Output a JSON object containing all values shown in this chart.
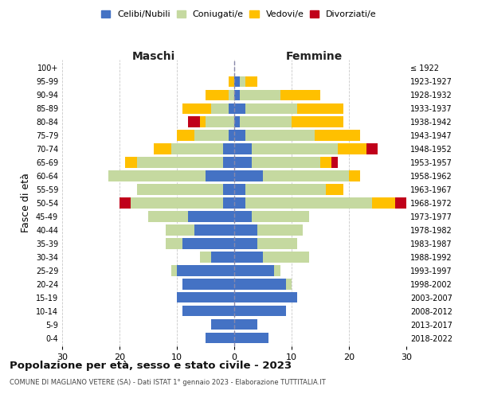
{
  "age_groups": [
    "0-4",
    "5-9",
    "10-14",
    "15-19",
    "20-24",
    "25-29",
    "30-34",
    "35-39",
    "40-44",
    "45-49",
    "50-54",
    "55-59",
    "60-64",
    "65-69",
    "70-74",
    "75-79",
    "80-84",
    "85-89",
    "90-94",
    "95-99",
    "100+"
  ],
  "birth_years": [
    "2018-2022",
    "2013-2017",
    "2008-2012",
    "2003-2007",
    "1998-2002",
    "1993-1997",
    "1988-1992",
    "1983-1987",
    "1978-1982",
    "1973-1977",
    "1968-1972",
    "1963-1967",
    "1958-1962",
    "1953-1957",
    "1948-1952",
    "1943-1947",
    "1938-1942",
    "1933-1937",
    "1928-1932",
    "1923-1927",
    "≤ 1922"
  ],
  "male_celibi": [
    5,
    4,
    9,
    10,
    9,
    10,
    4,
    9,
    7,
    8,
    2,
    2,
    5,
    2,
    2,
    1,
    0,
    1,
    0,
    0,
    0
  ],
  "male_coniugati": [
    0,
    0,
    0,
    0,
    0,
    1,
    2,
    3,
    5,
    7,
    16,
    15,
    17,
    15,
    9,
    6,
    5,
    3,
    1,
    0,
    0
  ],
  "male_vedovi": [
    0,
    0,
    0,
    0,
    0,
    0,
    0,
    0,
    0,
    0,
    0,
    0,
    0,
    2,
    3,
    3,
    1,
    5,
    4,
    1,
    0
  ],
  "male_divorziati": [
    0,
    0,
    0,
    0,
    0,
    0,
    0,
    0,
    0,
    0,
    2,
    0,
    0,
    0,
    0,
    0,
    2,
    0,
    0,
    0,
    0
  ],
  "female_celibi": [
    6,
    4,
    9,
    11,
    9,
    7,
    5,
    4,
    4,
    3,
    2,
    2,
    5,
    3,
    3,
    2,
    1,
    2,
    1,
    1,
    0
  ],
  "female_coniugati": [
    0,
    0,
    0,
    0,
    1,
    1,
    8,
    7,
    8,
    10,
    22,
    14,
    15,
    12,
    15,
    12,
    9,
    9,
    7,
    1,
    0
  ],
  "female_vedovi": [
    0,
    0,
    0,
    0,
    0,
    0,
    0,
    0,
    0,
    0,
    4,
    3,
    2,
    2,
    5,
    8,
    9,
    8,
    7,
    2,
    0
  ],
  "female_divorziati": [
    0,
    0,
    0,
    0,
    0,
    0,
    0,
    0,
    0,
    0,
    2,
    0,
    0,
    1,
    2,
    0,
    0,
    0,
    0,
    0,
    0
  ],
  "colors": {
    "celibi": "#4472c4",
    "coniugati": "#c5d9a0",
    "vedovi": "#ffc000",
    "divorziati": "#c0001a"
  },
  "xlim": [
    -30,
    30
  ],
  "xticks": [
    -30,
    -20,
    -10,
    0,
    10,
    20,
    30
  ],
  "xticklabels": [
    "30",
    "20",
    "10",
    "0",
    "10",
    "20",
    "30"
  ],
  "title_main": "Popolazione per età, sesso e stato civile - 2023",
  "title_sub": "COMUNE DI MAGLIANO VETERE (SA) - Dati ISTAT 1° gennaio 2023 - Elaborazione TUTTITALIA.IT",
  "ylabel_left": "Fasce di età",
  "label_maschi": "Maschi",
  "label_femmine": "Femmine",
  "legend_labels": [
    "Celibi/Nubili",
    "Coniugati/e",
    "Vedovi/e",
    "Divorziati/e"
  ],
  "bg_color": "#ffffff",
  "grid_color": "#bbbbbb"
}
